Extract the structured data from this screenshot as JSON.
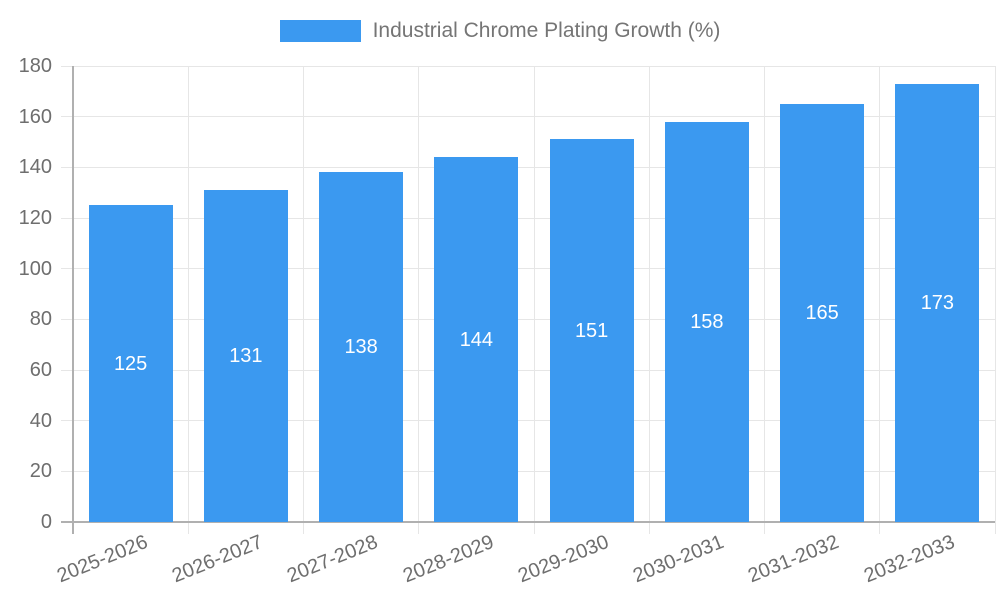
{
  "chart_data": {
    "type": "bar",
    "title": "Industrial Chrome Plating Growth (%)",
    "categories": [
      "2025-2026",
      "2026-2027",
      "2027-2028",
      "2028-2029",
      "2029-2030",
      "2030-2031",
      "2031-2032",
      "2032-2033"
    ],
    "values": [
      125,
      131,
      138,
      144,
      151,
      158,
      165,
      173
    ],
    "xlabel": "",
    "ylabel": "",
    "ylim": [
      0,
      180
    ],
    "yticks": [
      0,
      20,
      40,
      60,
      80,
      100,
      120,
      140,
      160,
      180
    ],
    "grid": true,
    "legend_position": "top",
    "value_labels_inside_bars": true,
    "colors": {
      "bar": "#3B99F0",
      "bar_value_label": "#FFFFFF",
      "axis_text": "#6E6E6E",
      "legend_text": "#757575",
      "grid_line": "#E6E6E6",
      "axis_line": "#B0B0B0",
      "background": "#FFFFFF"
    }
  }
}
